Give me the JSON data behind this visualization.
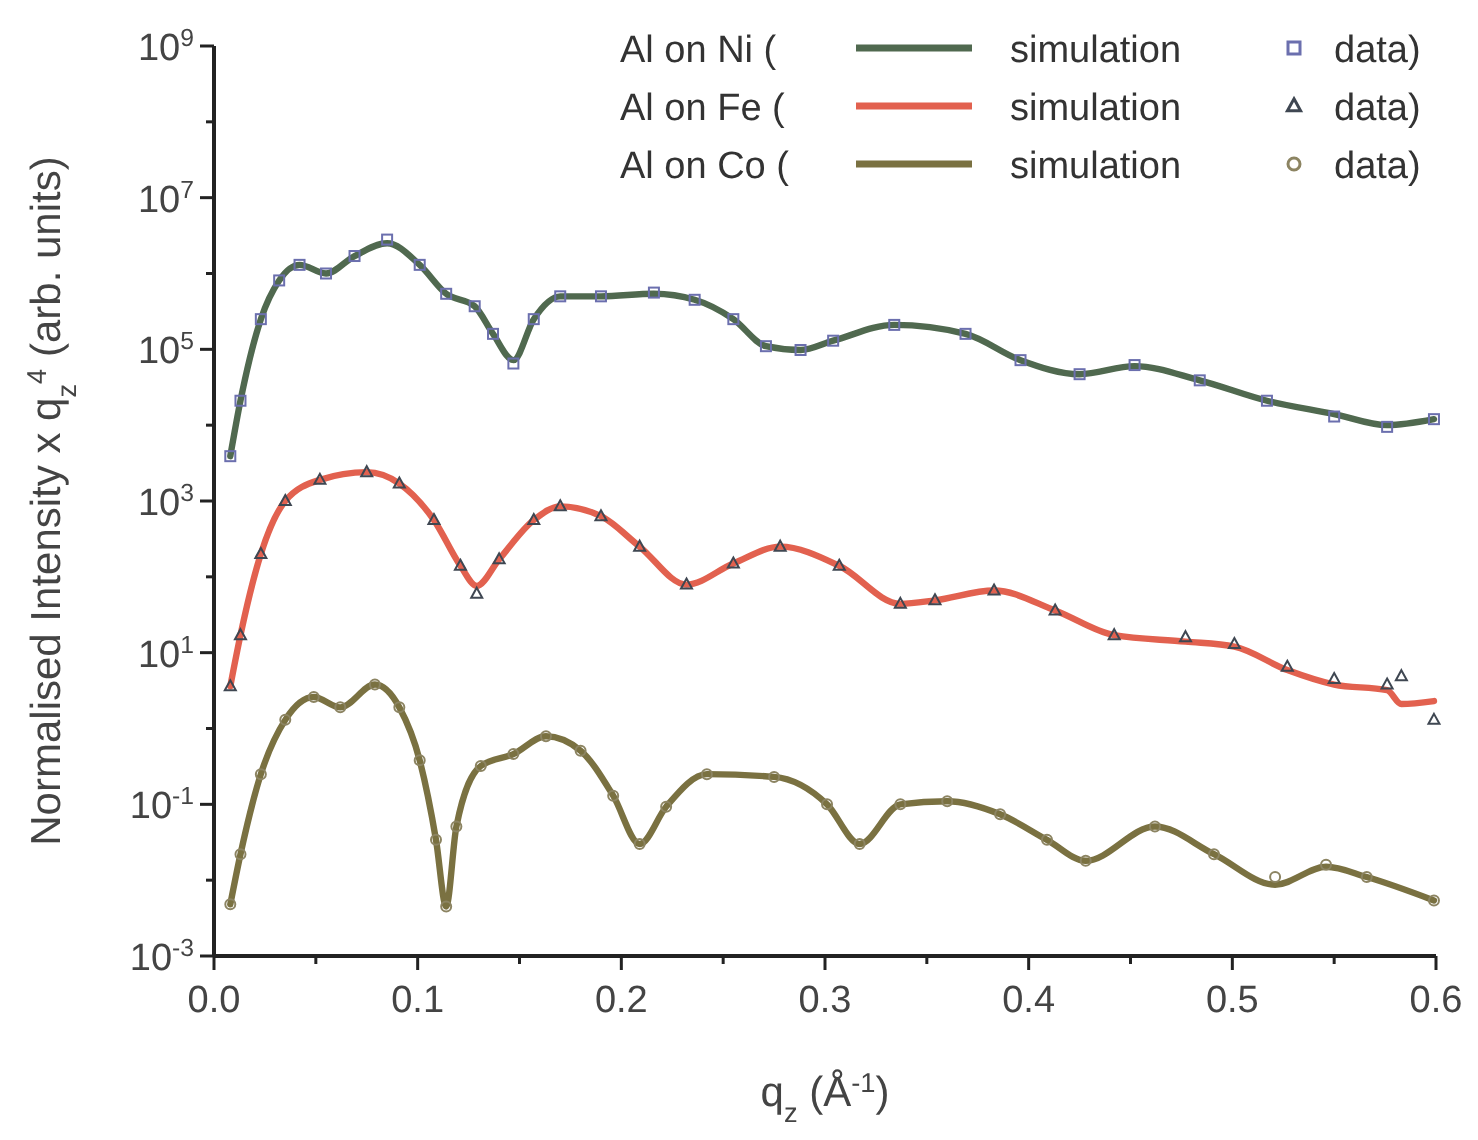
{
  "chart_data": {
    "type": "line",
    "xlabel": "q$_{z}$ (Å$^{-1}$)",
    "ylabel": "Normalised Intensity x q$_{z}$$^{4}$ (arb. units)",
    "annotations": [
      "Al on Ni (",
      "Al on Fe (",
      "Al on Co ("
    ],
    "log": "y",
    "legend": "top right",
    "grid": false,
    "xlim": [
      0,
      0.6
    ],
    "xticks": [
      {
        "value": 0,
        "label": "0.0"
      },
      {
        "value": 0.05,
        "label": null
      },
      {
        "value": 0.1,
        "label": "0.1"
      },
      {
        "value": 0.15,
        "label": null
      },
      {
        "value": 0.2,
        "label": "0.2"
      },
      {
        "value": 0.25,
        "label": null
      },
      {
        "value": 0.3,
        "label": "0.3"
      },
      {
        "value": 0.35,
        "label": null
      },
      {
        "value": 0.4,
        "label": "0.4"
      },
      {
        "value": 0.45,
        "label": null
      },
      {
        "value": 0.5,
        "label": "0.5"
      },
      {
        "value": 0.55,
        "label": null
      },
      {
        "value": 0.6,
        "label": "0.6"
      }
    ],
    "ylim": [
      0.001,
      1000000000
    ],
    "yticks": [
      {
        "value": 0.001,
        "label": "10$^{-3}$"
      },
      {
        "value": 0.01,
        "label": null
      },
      {
        "value": 0.1,
        "label": "10$^{-1}$"
      },
      {
        "value": 1,
        "label": null
      },
      {
        "value": 10,
        "label": "10$^{1}$"
      },
      {
        "value": 100,
        "label": null
      },
      {
        "value": 1000,
        "label": "10$^{3}$"
      },
      {
        "value": 10000,
        "label": null
      },
      {
        "value": 100000,
        "label": "10$^{5}$"
      },
      {
        "value": 1000000,
        "label": null
      },
      {
        "value": 10000000,
        "label": "10$^{7}$"
      },
      {
        "value": 100000000,
        "label": null
      },
      {
        "value": 1000000000,
        "label": "10$^{9}$"
      }
    ],
    "series": [
      {
        "name": "simulation",
        "marker": "none",
        "line_style": "solid",
        "color": "#50694f",
        "x": [
          0.008,
          0.013,
          0.023,
          0.032,
          0.042,
          0.055,
          0.069,
          0.085,
          0.101,
          0.114,
          0.128,
          0.137,
          0.147,
          0.157,
          0.17,
          0.19,
          0.216,
          0.236,
          0.255,
          0.271,
          0.288,
          0.304,
          0.334,
          0.369,
          0.396,
          0.425,
          0.452,
          0.484,
          0.517,
          0.55,
          0.576,
          0.599
        ],
        "values": [
          3900,
          21000,
          250000,
          810000,
          1300000,
          1000000,
          1700000,
          2500000,
          1300000,
          540000,
          370000,
          160000,
          72000,
          250000,
          500000,
          500000,
          540000,
          450000,
          250000,
          110000,
          98000,
          130000,
          210000,
          160000,
          72000,
          47000,
          60000,
          39000,
          21000,
          14000,
          10000,
          12000
        ]
      },
      {
        "name": "data)",
        "type": "scatter",
        "marker": "square",
        "color": "#6b6fae",
        "x": [
          0.008,
          0.013,
          0.023,
          0.032,
          0.042,
          0.055,
          0.069,
          0.085,
          0.101,
          0.114,
          0.128,
          0.137,
          0.147,
          0.157,
          0.17,
          0.19,
          0.216,
          0.236,
          0.255,
          0.271,
          0.288,
          0.304,
          0.334,
          0.369,
          0.396,
          0.425,
          0.452,
          0.484,
          0.517,
          0.55,
          0.576,
          0.599
        ],
        "values": [
          3900,
          21000,
          250000,
          810000,
          1300000,
          1000000,
          1700000,
          2800000,
          1300000,
          540000,
          370000,
          160000,
          65000,
          250000,
          500000,
          500000,
          560000,
          450000,
          250000,
          110000,
          98000,
          130000,
          210000,
          160000,
          72000,
          47000,
          62000,
          39000,
          21000,
          13000,
          9500,
          12000
        ]
      },
      {
        "name": "simulation",
        "marker": "none",
        "line_style": "solid",
        "color": "#e2614f",
        "x": [
          0.008,
          0.013,
          0.023,
          0.035,
          0.052,
          0.075,
          0.091,
          0.108,
          0.121,
          0.129,
          0.14,
          0.157,
          0.17,
          0.19,
          0.209,
          0.232,
          0.255,
          0.278,
          0.307,
          0.337,
          0.354,
          0.383,
          0.413,
          0.442,
          0.477,
          0.501,
          0.527,
          0.55,
          0.576,
          0.583,
          0.599
        ],
        "values": [
          3.6,
          17,
          200,
          1000,
          1900,
          2400,
          1700,
          560,
          140,
          76,
          170,
          560,
          850,
          630,
          250,
          79,
          150,
          250,
          140,
          44,
          49,
          66,
          36,
          17,
          14,
          12,
          5.9,
          3.8,
          3.2,
          2.1,
          2.3
        ]
      },
      {
        "name": "data)",
        "type": "scatter",
        "marker": "triangle",
        "color": "#3f4752",
        "x": [
          0.008,
          0.013,
          0.023,
          0.035,
          0.052,
          0.075,
          0.091,
          0.108,
          0.121,
          0.129,
          0.14,
          0.157,
          0.17,
          0.19,
          0.209,
          0.232,
          0.255,
          0.278,
          0.307,
          0.337,
          0.354,
          0.383,
          0.413,
          0.442,
          0.477,
          0.501,
          0.527,
          0.55,
          0.576,
          0.583,
          0.599
        ],
        "values": [
          3.6,
          17,
          200,
          1000,
          1900,
          2400,
          1700,
          560,
          140,
          60,
          170,
          560,
          850,
          630,
          250,
          79,
          150,
          250,
          140,
          44,
          49,
          66,
          36,
          17,
          16,
          13,
          6.5,
          4.5,
          3.8,
          4.9,
          1.3
        ]
      },
      {
        "name": "simulation",
        "marker": "none",
        "line_style": "solid",
        "color": "#7a7141",
        "x": [
          0.008,
          0.013,
          0.023,
          0.035,
          0.049,
          0.062,
          0.079,
          0.091,
          0.101,
          0.109,
          0.114,
          0.119,
          0.131,
          0.147,
          0.163,
          0.18,
          0.196,
          0.209,
          0.222,
          0.242,
          0.275,
          0.301,
          0.317,
          0.337,
          0.36,
          0.386,
          0.409,
          0.428,
          0.462,
          0.491,
          0.521,
          0.546,
          0.566,
          0.599
        ],
        "values": [
          0.0048,
          0.022,
          0.25,
          1.3,
          2.6,
          1.9,
          3.8,
          1.9,
          0.38,
          0.034,
          0.0045,
          0.051,
          0.32,
          0.46,
          0.79,
          0.51,
          0.13,
          0.03,
          0.093,
          0.25,
          0.23,
          0.1,
          0.03,
          0.1,
          0.11,
          0.074,
          0.034,
          0.018,
          0.051,
          0.022,
          0.0087,
          0.015,
          0.011,
          0.0054
        ]
      },
      {
        "name": "data)",
        "type": "scatter",
        "marker": "circle",
        "color": "#8c8462",
        "x": [
          0.008,
          0.013,
          0.023,
          0.035,
          0.049,
          0.062,
          0.079,
          0.091,
          0.101,
          0.109,
          0.114,
          0.119,
          0.131,
          0.147,
          0.163,
          0.18,
          0.196,
          0.209,
          0.222,
          0.242,
          0.275,
          0.301,
          0.317,
          0.337,
          0.36,
          0.386,
          0.409,
          0.428,
          0.462,
          0.491,
          0.521,
          0.546,
          0.566,
          0.599
        ],
        "values": [
          0.0048,
          0.022,
          0.25,
          1.3,
          2.6,
          1.9,
          3.8,
          1.9,
          0.38,
          0.034,
          0.0045,
          0.051,
          0.32,
          0.46,
          0.79,
          0.51,
          0.13,
          0.03,
          0.093,
          0.25,
          0.23,
          0.1,
          0.03,
          0.1,
          0.11,
          0.074,
          0.034,
          0.018,
          0.051,
          0.022,
          0.011,
          0.016,
          0.011,
          0.0054
        ]
      }
    ]
  }
}
